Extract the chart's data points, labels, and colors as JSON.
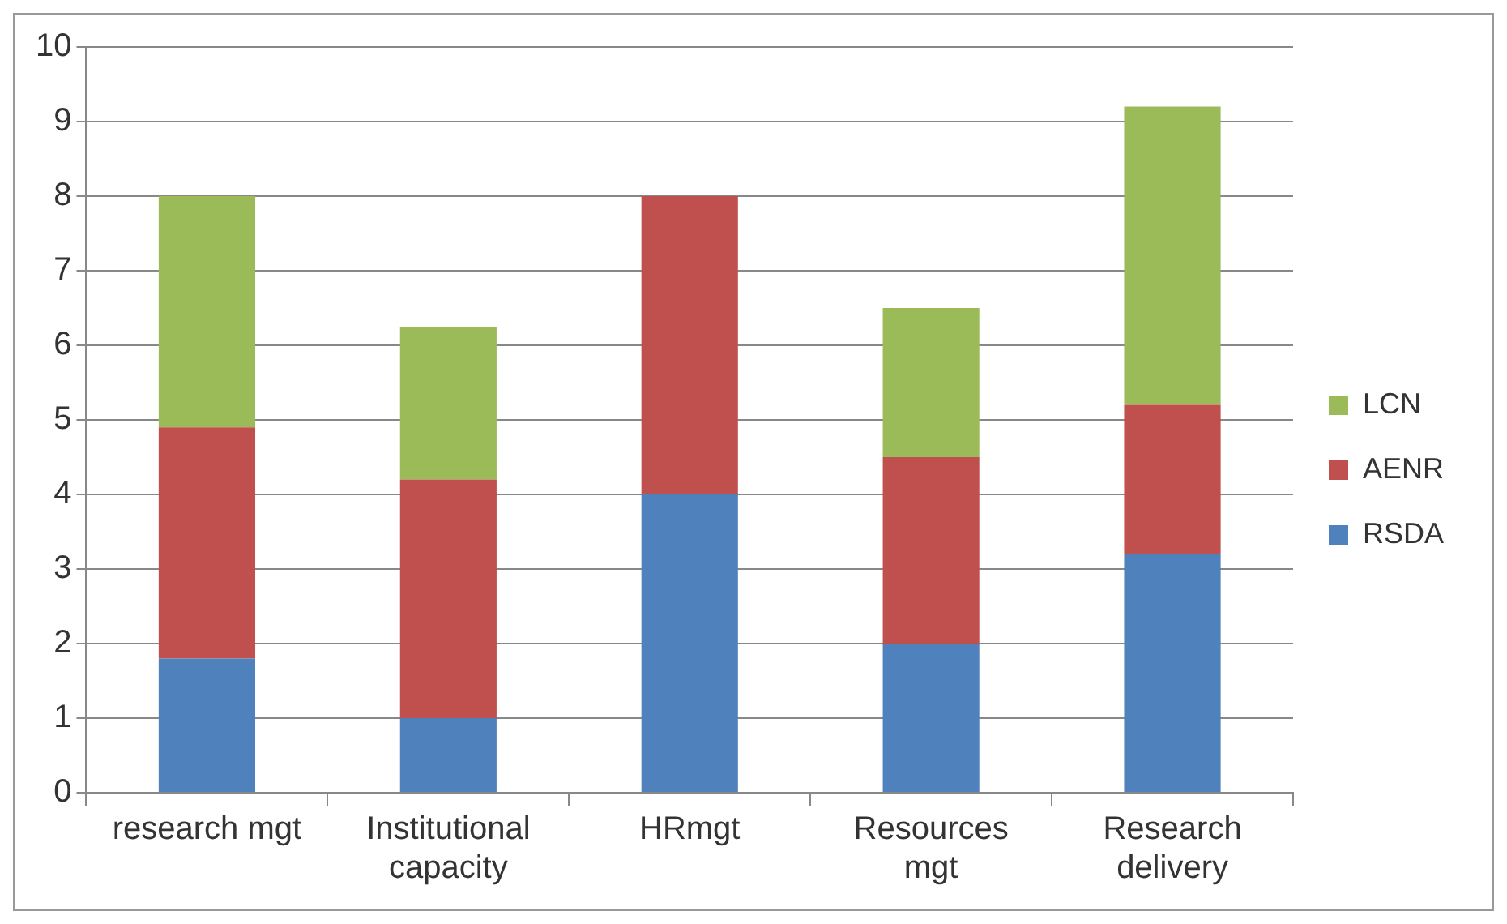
{
  "chart_data": {
    "type": "bar",
    "stacked": true,
    "categories": [
      "research mgt",
      "Institutional capacity",
      "HRmgt",
      "Resources mgt",
      "Research delivery"
    ],
    "series": [
      {
        "name": "RSDA",
        "color": "#4f81bd",
        "values": [
          1.8,
          1.0,
          4.0,
          2.0,
          3.2
        ]
      },
      {
        "name": "AENR",
        "color": "#c0504d",
        "values": [
          3.1,
          3.2,
          4.0,
          2.5,
          2.0
        ]
      },
      {
        "name": "LCN",
        "color": "#9bbb59",
        "values": [
          3.1,
          2.05,
          0,
          2.0,
          4.0
        ]
      }
    ],
    "ylim": [
      0,
      10
    ],
    "yticks": [
      0,
      1,
      2,
      3,
      4,
      5,
      6,
      7,
      8,
      9,
      10
    ],
    "grid": "y",
    "legend": "right"
  }
}
